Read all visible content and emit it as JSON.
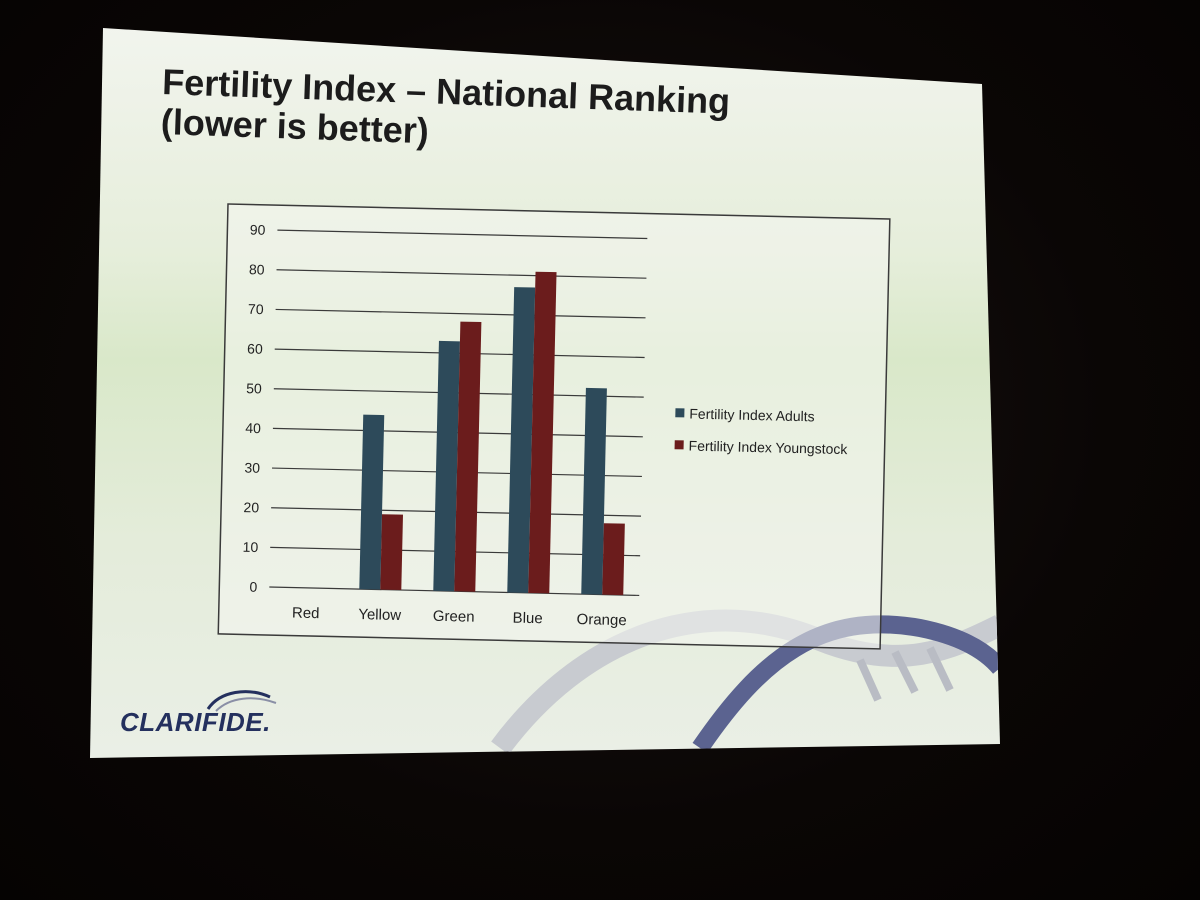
{
  "slide": {
    "title_line1": "Fertility Index – National Ranking",
    "title_line2": "(lower is better)",
    "logo_text": "CLARIFIDE."
  },
  "colors": {
    "adults": "#2d4a5a",
    "youngstock": "#6b1c1c",
    "text": "#1c1c1c",
    "logo": "#24305e"
  },
  "chart_data": {
    "type": "bar",
    "categories": [
      "Red",
      "Yellow",
      "Green",
      "Blue",
      "Orange"
    ],
    "series": [
      {
        "name": "Fertility Index Adults",
        "values": [
          0,
          44,
          63,
          77,
          52
        ]
      },
      {
        "name": "Fertility Index Youngstock",
        "values": [
          0,
          19,
          68,
          81,
          18
        ]
      }
    ],
    "yticks": [
      0,
      10,
      20,
      30,
      40,
      50,
      60,
      70,
      80,
      90
    ],
    "ylim": [
      0,
      90
    ],
    "grid": true,
    "legend": "right",
    "title": "",
    "xlabel": "",
    "ylabel": ""
  }
}
